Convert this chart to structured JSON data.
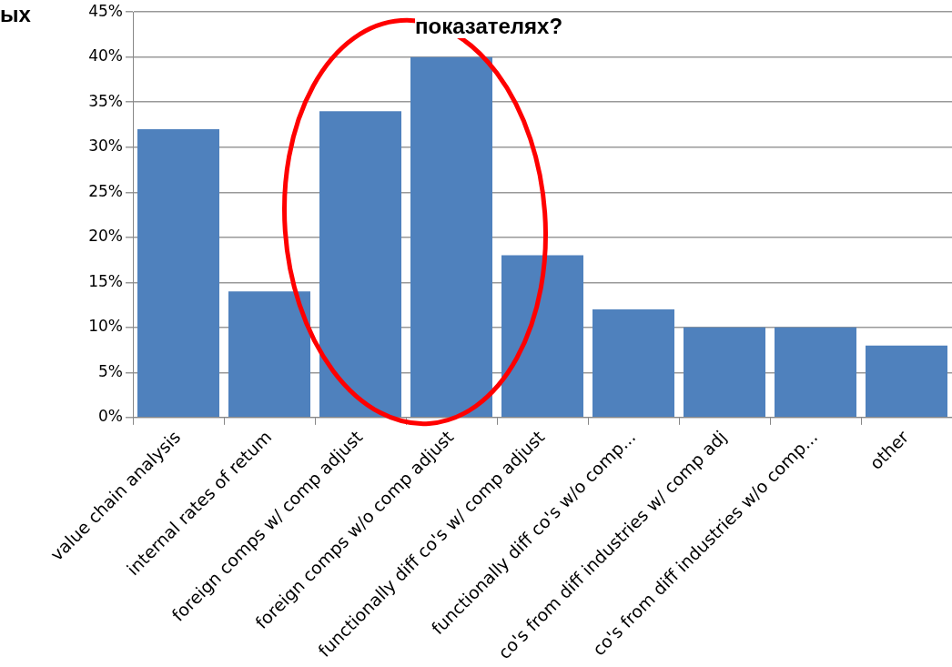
{
  "chart_data": {
    "type": "bar",
    "title": "показателях?",
    "annotations": [
      "ых"
    ],
    "categories": [
      "value chain analysis",
      "internal rates of retum",
      "foreign comps w/ comp adjust",
      "foreign comps w/o comp adjust",
      "functionally diff co's w/ comp adjust",
      "functionally diff co's w/o comp...",
      "co's from diff industries w/ comp adj",
      "co's from diff industries w/o comp...",
      "other"
    ],
    "values": [
      32,
      14,
      34,
      40,
      18,
      12,
      10,
      10,
      8
    ],
    "color": "#4f81bd",
    "ylim": [
      0,
      45
    ],
    "yticks": [
      {
        "value": 0,
        "label": "0%"
      },
      {
        "value": 5,
        "label": "5%"
      },
      {
        "value": 10,
        "label": "10%"
      },
      {
        "value": 15,
        "label": "15%"
      },
      {
        "value": 20,
        "label": "20%"
      },
      {
        "value": 25,
        "label": "25%"
      },
      {
        "value": 30,
        "label": "30%"
      },
      {
        "value": 35,
        "label": "35%"
      },
      {
        "value": 40,
        "label": "40%"
      },
      {
        "value": 45,
        "label": "45%"
      }
    ],
    "grid": "y"
  }
}
